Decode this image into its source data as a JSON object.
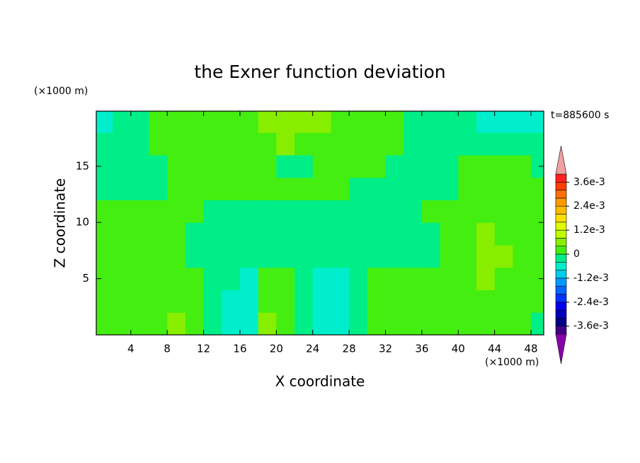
{
  "chart_data": {
    "type": "contour",
    "title": "the Exner function deviation",
    "x_label": "X coordinate",
    "y_label": "Z coordinate",
    "x_unit": "(×1000 m)",
    "y_unit": "(×1000 m)",
    "time_label": "t=885600 s",
    "x": [
      1,
      3,
      5,
      7,
      9,
      11,
      13,
      15,
      17,
      19,
      21,
      23,
      25,
      27,
      29,
      31,
      33,
      35,
      37,
      39,
      41,
      43,
      45,
      47,
      49
    ],
    "y": [
      1,
      3,
      5,
      7,
      9,
      11,
      13,
      15,
      17,
      19
    ],
    "z": [
      [
        0.0002,
        0.0002,
        0.0002,
        0.0002,
        0.0006,
        0.0002,
        -0.0002,
        -0.0006,
        -0.0006,
        0.0006,
        0.0002,
        -0.0002,
        -0.0006,
        -0.0006,
        -0.0002,
        0.0002,
        0.0002,
        0.0002,
        0.0002,
        0.0002,
        0.0002,
        0.0002,
        0.0002,
        0.0002,
        -0.0002
      ],
      [
        0.0002,
        0.0002,
        0.0002,
        0.0002,
        0.0002,
        0.0002,
        -0.0002,
        -0.0006,
        -0.0006,
        0.0002,
        0.0002,
        -0.0002,
        -0.0006,
        -0.0006,
        -0.0002,
        0.0002,
        0.0002,
        0.0002,
        0.0002,
        0.0002,
        0.0002,
        0.0002,
        0.0002,
        0.0002,
        0.0002
      ],
      [
        0.0002,
        0.0002,
        0.0002,
        0.0002,
        0.0002,
        0.0002,
        -0.0002,
        -0.0002,
        -0.0006,
        0.0002,
        0.0002,
        -0.0002,
        -0.0006,
        -0.0006,
        -0.0002,
        0.0002,
        0.0002,
        0.0002,
        0.0002,
        0.0002,
        0.0002,
        0.0006,
        0.0002,
        0.0002,
        0.0002
      ],
      [
        0.0002,
        0.0002,
        0.0002,
        0.0002,
        0.0002,
        -0.0002,
        -0.0002,
        -0.0002,
        -0.0002,
        -0.0002,
        -0.0002,
        -0.0002,
        -0.0002,
        -0.0002,
        -0.0002,
        -0.0002,
        -0.0002,
        -0.0002,
        -0.0002,
        0.0002,
        0.0002,
        0.0006,
        0.0006,
        0.0002,
        0.0002
      ],
      [
        0.0002,
        0.0002,
        0.0002,
        0.0002,
        0.0002,
        -0.0002,
        -0.0002,
        -0.0002,
        -0.0002,
        -0.0002,
        -0.0002,
        -0.0002,
        -0.0002,
        -0.0002,
        -0.0002,
        -0.0002,
        -0.0002,
        -0.0002,
        -0.0002,
        0.0002,
        0.0002,
        0.0006,
        0.0002,
        0.0002,
        0.0002
      ],
      [
        0.0002,
        0.0002,
        0.0002,
        0.0002,
        0.0002,
        0.0002,
        -0.0002,
        -0.0002,
        -0.0002,
        -0.0002,
        -0.0002,
        -0.0002,
        -0.0002,
        -0.0002,
        -0.0002,
        -0.0002,
        -0.0002,
        -0.0002,
        0.0002,
        0.0002,
        0.0002,
        0.0002,
        0.0002,
        0.0002,
        0.0002
      ],
      [
        -0.0002,
        -0.0002,
        -0.0002,
        -0.0002,
        0.0002,
        0.0002,
        0.0002,
        0.0002,
        0.0002,
        0.0002,
        0.0002,
        0.0002,
        0.0002,
        0.0002,
        -0.0002,
        -0.0002,
        -0.0002,
        -0.0002,
        -0.0002,
        -0.0002,
        0.0002,
        0.0002,
        0.0002,
        0.0002,
        0.0002
      ],
      [
        -0.0002,
        -0.0002,
        -0.0002,
        -0.0002,
        0.0002,
        0.0002,
        0.0002,
        0.0002,
        0.0002,
        0.0002,
        -0.0002,
        -0.0002,
        0.0002,
        0.0002,
        0.0002,
        0.0002,
        -0.0002,
        -0.0002,
        -0.0002,
        -0.0002,
        0.0002,
        0.0002,
        0.0002,
        0.0002,
        -0.0002
      ],
      [
        -0.0002,
        -0.0002,
        -0.0002,
        0.0002,
        0.0002,
        0.0002,
        0.0002,
        0.0002,
        0.0002,
        0.0002,
        0.0006,
        0.0002,
        0.0002,
        0.0002,
        0.0002,
        0.0002,
        0.0002,
        -0.0002,
        -0.0002,
        -0.0002,
        -0.0002,
        -0.0002,
        -0.0002,
        -0.0002,
        -0.0002
      ],
      [
        -0.0006,
        -0.0002,
        -0.0002,
        0.0002,
        0.0002,
        0.0002,
        0.0002,
        0.0002,
        0.0002,
        0.0006,
        0.0006,
        0.0006,
        0.0006,
        0.0002,
        0.0002,
        0.0002,
        0.0002,
        -0.0002,
        -0.0002,
        -0.0002,
        -0.0002,
        -0.0006,
        -0.0006,
        -0.0006,
        -0.0006
      ]
    ],
    "xlim": [
      0.2,
      49.4
    ],
    "ylim": [
      0,
      19.9
    ],
    "xticks": [
      4,
      8,
      12,
      16,
      20,
      24,
      28,
      32,
      36,
      40,
      44,
      48
    ],
    "yticks": [
      5,
      10,
      15
    ],
    "levels": [
      -0.004,
      -0.0036,
      -0.0032,
      -0.0028,
      -0.0024,
      -0.002,
      -0.0016,
      -0.0012,
      -0.0008,
      -0.0004,
      0,
      0.0004,
      0.0008,
      0.0012,
      0.0016,
      0.002,
      0.0024,
      0.0028,
      0.0032,
      0.0036,
      0.004
    ],
    "level_colors": [
      "#440088",
      "#000088",
      "#0000bb",
      "#0000ee",
      "#0033ff",
      "#0066ff",
      "#0099ff",
      "#00ccee",
      "#00eecc",
      "#00ee88",
      "#44ee11",
      "#88ee00",
      "#c0ff00",
      "#e0ff00",
      "#ffe000",
      "#ffbb00",
      "#ff9900",
      "#ff7000",
      "#ff4000",
      "#ff2020"
    ],
    "extend_colors": {
      "under": "#8800aa",
      "over": "#f0a0a0"
    },
    "colorbar_ticks": [
      {
        "value": -0.0036,
        "label": "-3.6e-3"
      },
      {
        "value": -0.0024,
        "label": "-2.4e-3"
      },
      {
        "value": -0.0012,
        "label": "-1.2e-3"
      },
      0,
      {
        "value": 0.0012,
        "label": "1.2e-3"
      },
      {
        "value": 0.0024,
        "label": "2.4e-3"
      },
      {
        "value": 0.0036,
        "label": "3.6e-3"
      }
    ]
  }
}
